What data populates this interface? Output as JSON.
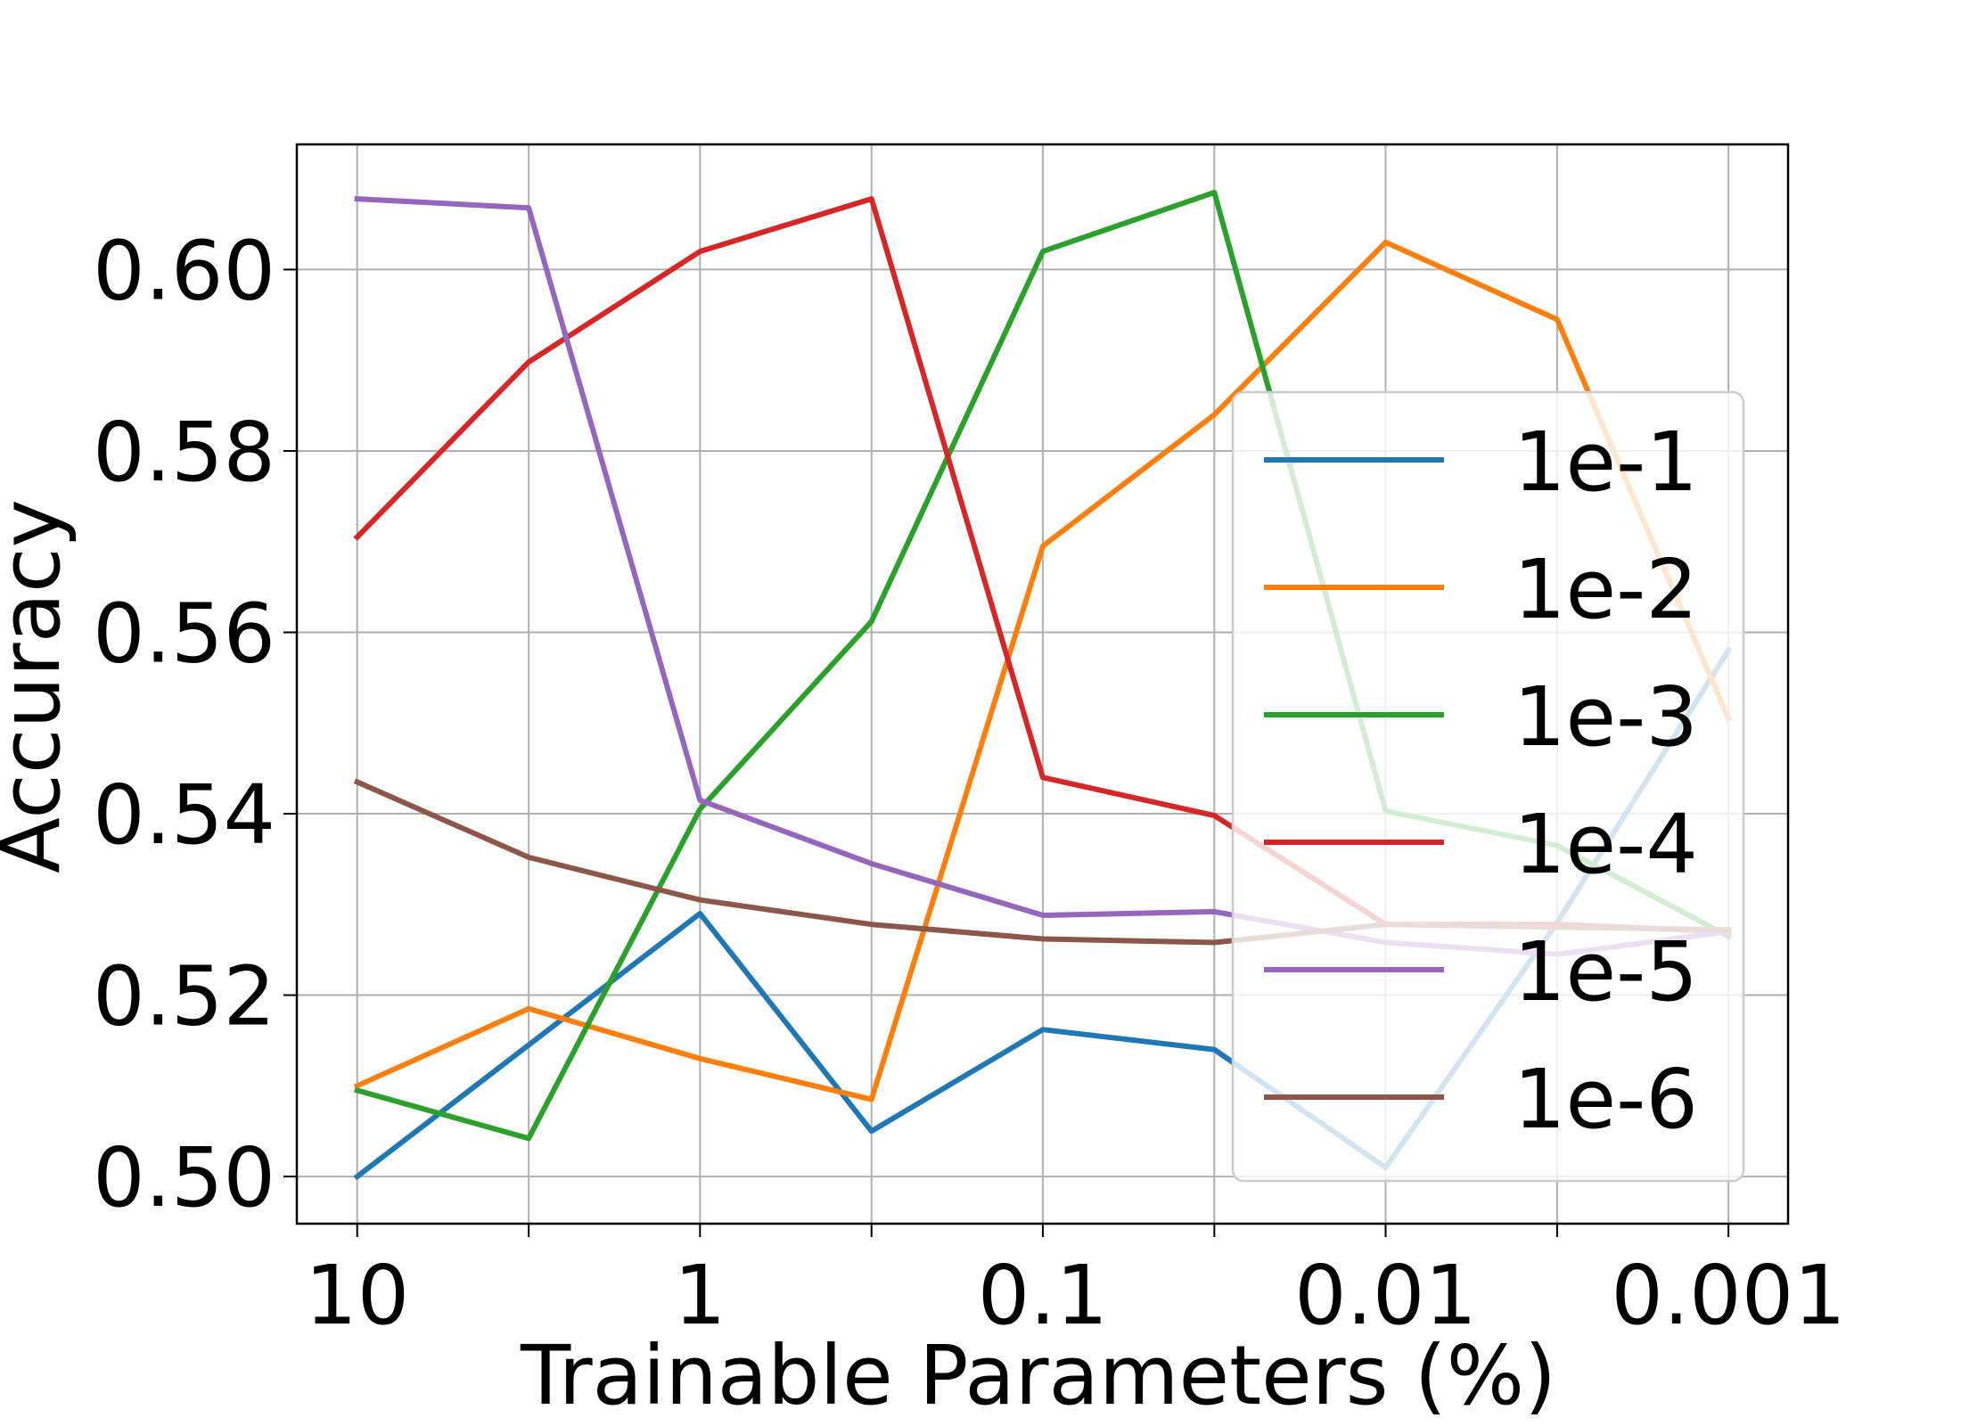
{
  "chart_data": {
    "type": "line",
    "xlabel": "Trainable Parameters (%)",
    "ylabel": "Accuracy",
    "x_scale": "log",
    "x_reversed": true,
    "xlim": [
      15,
      0.00067
    ],
    "ylim": [
      0.4948,
      0.6138
    ],
    "x_ticks": [
      10,
      3.16,
      1,
      0.316,
      0.1,
      0.0316,
      0.01,
      0.00316,
      0.001
    ],
    "x_tick_labels": [
      "10",
      "",
      "1",
      "",
      "0.1",
      "",
      "0.01",
      "",
      "0.001"
    ],
    "y_ticks": [
      0.5,
      0.52,
      0.54,
      0.56,
      0.58,
      0.6
    ],
    "y_tick_labels": [
      "0.50",
      "0.52",
      "0.54",
      "0.56",
      "0.58",
      "0.60"
    ],
    "grid": true,
    "legend_position": "right",
    "x": [
      10,
      3.16,
      1,
      0.316,
      0.1,
      0.0316,
      0.01,
      0.00316,
      0.001
    ],
    "series": [
      {
        "name": "1e-1",
        "color": "#1f77b4",
        "values": [
          0.5,
          0.5145,
          0.529,
          0.505,
          0.5162,
          0.514,
          0.501,
          0.528,
          0.558
        ]
      },
      {
        "name": "1e-2",
        "color": "#ff7f0e",
        "values": [
          0.51,
          0.5185,
          0.513,
          0.5085,
          0.5695,
          0.584,
          0.603,
          0.5945,
          0.5505
        ]
      },
      {
        "name": "1e-3",
        "color": "#2ca02c",
        "values": [
          0.5095,
          0.5042,
          0.5405,
          0.5612,
          0.602,
          0.6085,
          0.5403,
          0.5365,
          0.5265
        ]
      },
      {
        "name": "1e-4",
        "color": "#d62728",
        "values": [
          0.5705,
          0.5898,
          0.602,
          0.6078,
          0.544,
          0.5398,
          0.5278,
          0.5278,
          0.527
        ]
      },
      {
        "name": "1e-5",
        "color": "#9467bd",
        "values": [
          0.6078,
          0.6068,
          0.5415,
          0.5345,
          0.5288,
          0.5292,
          0.5258,
          0.5245,
          0.527
        ]
      },
      {
        "name": "1e-6",
        "color": "#8c564b",
        "values": [
          0.5435,
          0.5352,
          0.5305,
          0.5278,
          0.5262,
          0.5258,
          0.5278,
          0.5275,
          0.5272
        ]
      }
    ]
  }
}
